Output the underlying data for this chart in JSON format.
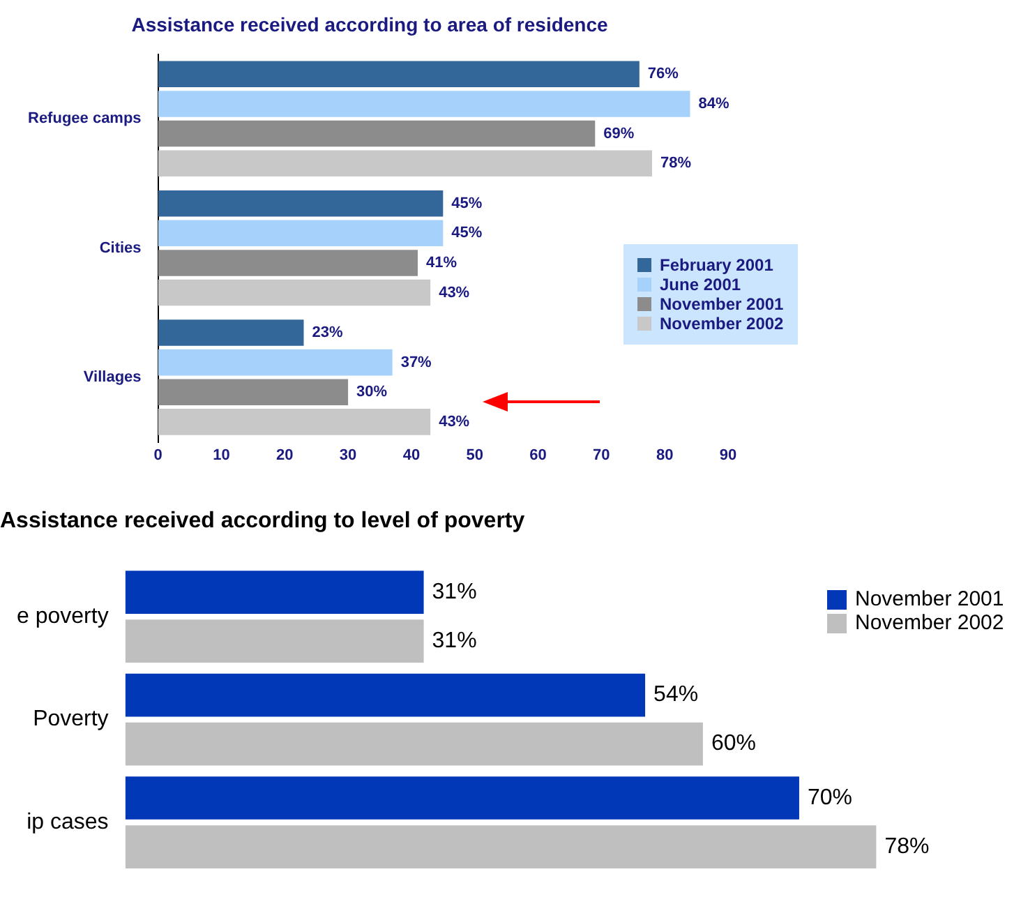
{
  "chart_data": [
    {
      "type": "bar",
      "orientation": "horizontal",
      "title": "Assistance received according to area of residence",
      "categories": [
        "Refugee camps",
        "Cities",
        "Villages"
      ],
      "series": [
        {
          "name": "February 2001",
          "color": "#336699",
          "values": [
            76,
            45,
            23
          ],
          "value_labels": [
            "76%",
            "45%",
            "23%"
          ]
        },
        {
          "name": "June 2001",
          "color": "#a6d1fa",
          "values": [
            84,
            45,
            37
          ],
          "value_labels": [
            "84%",
            "45%",
            "37%"
          ]
        },
        {
          "name": "November 2001",
          "color": "#8c8c8c",
          "values": [
            69,
            41,
            30
          ],
          "value_labels": [
            "69%",
            "41%",
            "30%"
          ]
        },
        {
          "name": "November 2002",
          "color": "#c8c8c8",
          "values": [
            78,
            43,
            43
          ],
          "value_labels": [
            "78%",
            "43%",
            "43%"
          ]
        }
      ],
      "xlim": [
        0,
        90
      ],
      "xticks": [
        0,
        10,
        20,
        30,
        40,
        50,
        60,
        70,
        80,
        90
      ],
      "grid": false,
      "legend": "right"
    },
    {
      "type": "bar",
      "orientation": "horizontal",
      "title": "Assistance received according to level of poverty",
      "categories": [
        "e poverty",
        "Poverty",
        "ip cases"
      ],
      "series": [
        {
          "name": "November 2001",
          "color": "#0038b8",
          "values": [
            31,
            54,
            70
          ],
          "value_labels": [
            "31%",
            "54%",
            "70%"
          ]
        },
        {
          "name": "November 2002",
          "color": "#bfbfbf",
          "values": [
            31,
            60,
            78
          ],
          "value_labels": [
            "31%",
            "60%",
            "78%"
          ]
        }
      ],
      "tick_labels": "y",
      "grid": false,
      "legend": "top right"
    }
  ]
}
